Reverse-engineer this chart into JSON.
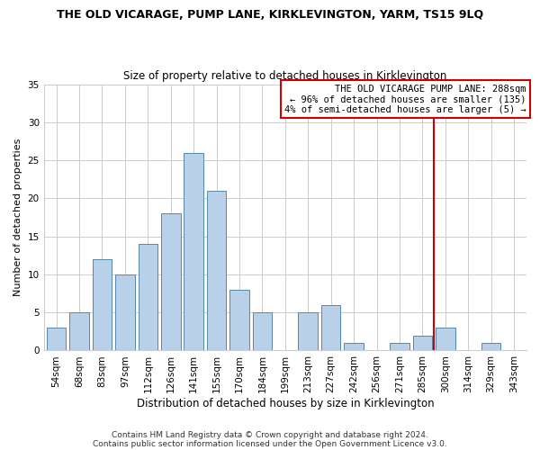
{
  "title": "THE OLD VICARAGE, PUMP LANE, KIRKLEVINGTON, YARM, TS15 9LQ",
  "subtitle": "Size of property relative to detached houses in Kirklevington",
  "xlabel": "Distribution of detached houses by size in Kirklevington",
  "ylabel": "Number of detached properties",
  "bar_labels": [
    "54sqm",
    "68sqm",
    "83sqm",
    "97sqm",
    "112sqm",
    "126sqm",
    "141sqm",
    "155sqm",
    "170sqm",
    "184sqm",
    "199sqm",
    "213sqm",
    "227sqm",
    "242sqm",
    "256sqm",
    "271sqm",
    "285sqm",
    "300sqm",
    "314sqm",
    "329sqm",
    "343sqm"
  ],
  "bar_heights": [
    3,
    5,
    12,
    10,
    14,
    18,
    26,
    21,
    8,
    5,
    0,
    5,
    6,
    1,
    0,
    1,
    2,
    3,
    0,
    1,
    0
  ],
  "bar_color": "#b8d0e8",
  "bar_edge_color": "#5588aa",
  "ylim": [
    0,
    35
  ],
  "yticks": [
    0,
    5,
    10,
    15,
    20,
    25,
    30,
    35
  ],
  "vline_color": "#cc0000",
  "legend_title": "THE OLD VICARAGE PUMP LANE: 288sqm",
  "legend_line1": "← 96% of detached houses are smaller (135)",
  "legend_line2": "4% of semi-detached houses are larger (5) →",
  "footer_line1": "Contains HM Land Registry data © Crown copyright and database right 2024.",
  "footer_line2": "Contains public sector information licensed under the Open Government Licence v3.0.",
  "background_color": "#ffffff",
  "grid_color": "#cccccc",
  "title_fontsize": 9.0,
  "subtitle_fontsize": 8.5,
  "xlabel_fontsize": 8.5,
  "ylabel_fontsize": 8.0,
  "tick_fontsize": 7.5,
  "footer_fontsize": 6.5
}
